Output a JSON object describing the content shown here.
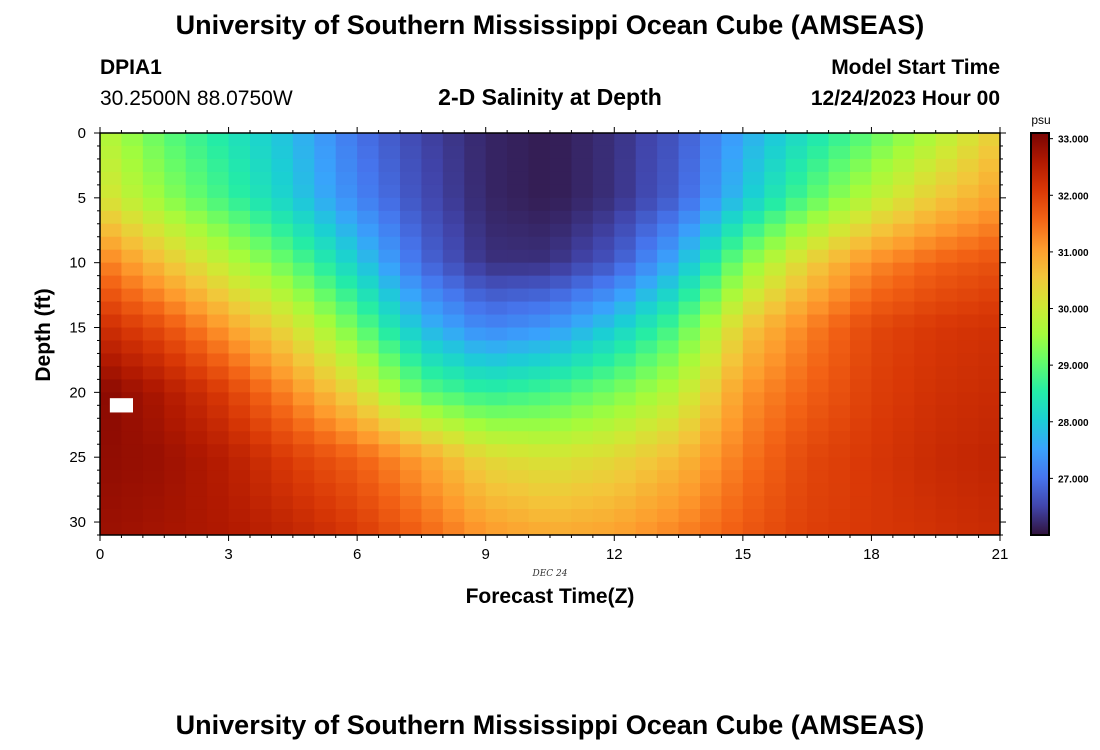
{
  "page": {
    "title_top": "University of Southern Mississippi Ocean Cube (AMSEAS)",
    "title_bottom": "University of Southern Mississippi Ocean Cube (AMSEAS)",
    "station_id": "DPIA1",
    "station_coords": "30.2500N  88.0750W",
    "subtitle": "2-D Salinity at Depth",
    "model_start_label": "Model Start Time",
    "model_start_value": "12/24/2023 Hour 00",
    "colorbar_unit": "psu"
  },
  "chart_data": {
    "type": "heatmap",
    "title": "2-D Salinity at Depth",
    "xlabel": "Forecast Time(Z)",
    "ylabel": "Depth (ft)",
    "date_label": "DEC 24",
    "xlim": [
      0,
      21
    ],
    "ylim": [
      31,
      0
    ],
    "xticks": [
      0,
      3,
      6,
      9,
      12,
      15,
      18,
      21
    ],
    "yticks": [
      0,
      5,
      10,
      15,
      20,
      25,
      30
    ],
    "colorbar": {
      "label": "psu",
      "range": [
        26.0,
        33.1
      ],
      "ticks": [
        "27.000",
        "28.000",
        "29.000",
        "30.000",
        "31.000",
        "32.000",
        "33.000"
      ],
      "tick_values": [
        27,
        28,
        29,
        30,
        31,
        32,
        33
      ],
      "colors": [
        "#30123b",
        "#4145ab",
        "#4675ed",
        "#39a2fc",
        "#1bcfd4",
        "#24eca6",
        "#61fc6c",
        "#a4fc3b",
        "#d1e834",
        "#f3c63a",
        "#fe9b2d",
        "#f36315",
        "#d93806",
        "#b11901",
        "#7a0403"
      ]
    },
    "grid": {
      "times": [
        0,
        1.5,
        3,
        4.5,
        6,
        7.5,
        9,
        10.5,
        12,
        13.5,
        15,
        16.5,
        18,
        19.5,
        21
      ],
      "depths": [
        0,
        5,
        10,
        15,
        20,
        25,
        31
      ],
      "salinity": [
        [
          29.8,
          29.0,
          28.4,
          27.8,
          27.0,
          26.5,
          26.2,
          26.1,
          26.3,
          26.7,
          27.6,
          28.3,
          29.0,
          29.7,
          30.5
        ],
        [
          30.2,
          29.4,
          28.7,
          28.0,
          27.2,
          26.6,
          26.2,
          26.1,
          26.3,
          26.8,
          27.9,
          28.9,
          29.8,
          30.5,
          31.0
        ],
        [
          31.4,
          30.6,
          29.8,
          29.0,
          28.0,
          26.9,
          26.3,
          26.3,
          26.7,
          27.7,
          29.3,
          30.4,
          31.2,
          31.6,
          31.8
        ],
        [
          32.3,
          31.8,
          31.0,
          30.2,
          29.1,
          27.8,
          27.2,
          27.4,
          28.0,
          28.9,
          30.5,
          31.3,
          31.9,
          32.1,
          32.2
        ],
        [
          33.0,
          32.6,
          32.0,
          31.2,
          30.3,
          29.0,
          28.6,
          28.8,
          29.2,
          29.8,
          31.1,
          31.6,
          32.0,
          32.2,
          32.3
        ],
        [
          32.9,
          32.8,
          32.5,
          32.0,
          31.6,
          31.0,
          30.3,
          30.1,
          30.3,
          30.7,
          31.4,
          31.9,
          32.1,
          32.3,
          32.4
        ],
        [
          32.8,
          32.7,
          32.6,
          32.4,
          32.1,
          31.6,
          31.1,
          30.9,
          31.0,
          31.3,
          31.7,
          32.0,
          32.1,
          32.2,
          32.3
        ]
      ],
      "missing_cell": {
        "t": 0.5,
        "d": 21
      }
    }
  }
}
